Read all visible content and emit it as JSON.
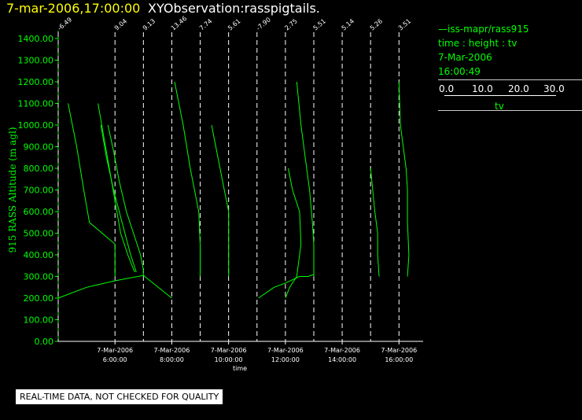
{
  "header": {
    "timestamp": "7-mar-2006,17:00:00",
    "title": "XYObservation:rasspigtails."
  },
  "legend": {
    "series": "iss-mapr/rass915",
    "variables": "time : height : tv",
    "date": "7-Mar-2006",
    "time": "16:00:49",
    "scale_ticks": [
      "0.0",
      "10.0",
      "20.0",
      "30.0"
    ],
    "scale_unit": "tv"
  },
  "note": "REAL-TIME DATA, NOT CHECKED FOR QUALITY",
  "colors": {
    "series": "#00ff00",
    "timestamp": "#ffff00",
    "background": "#000000",
    "gridline": "#ffffff"
  },
  "chart_data": {
    "type": "line",
    "title": "XYObservation:rasspigtails.",
    "ylabel": "915 RASS Altitude (m agl)",
    "xlabel": "time",
    "ylim": [
      0,
      1400
    ],
    "yticks": [
      0,
      100,
      200,
      300,
      400,
      500,
      600,
      700,
      800,
      900,
      1000,
      1100,
      1200,
      1300,
      1400
    ],
    "ytick_labels": [
      "0.00",
      "100.00",
      "200.00",
      "300.00",
      "400.00",
      "500.00",
      "600.00",
      "700.00",
      "800.00",
      "900.00",
      "1000.00",
      "1100.00",
      "1200.00",
      "1300.00",
      "1400.00"
    ],
    "x_hours_range": [
      4.0,
      16.85
    ],
    "x_ticks": [
      {
        "hour": 6,
        "date": "7-Mar-2006",
        "time": "6:00:00"
      },
      {
        "hour": 8,
        "date": "7-Mar-2006",
        "time": "8:00:00"
      },
      {
        "hour": 10,
        "date": "7-Mar-2006",
        "time": "10:00:00"
      },
      {
        "hour": 12,
        "date": "7-Mar-2006",
        "time": "12:00:00"
      },
      {
        "hour": 14,
        "date": "7-Mar-2006",
        "time": "14:00:00"
      },
      {
        "hour": 16,
        "date": "7-Mar-2006",
        "time": "16:00:00"
      }
    ],
    "profiles": [
      {
        "hour": 4.0,
        "label": "-6.49"
      },
      {
        "hour": 6.0,
        "label": "9.04"
      },
      {
        "hour": 7.0,
        "label": "9.13"
      },
      {
        "hour": 8.0,
        "label": "13.46"
      },
      {
        "hour": 9.0,
        "label": "7.74"
      },
      {
        "hour": 10.0,
        "label": "5.61"
      },
      {
        "hour": 11.0,
        "label": "-7.90"
      },
      {
        "hour": 12.0,
        "label": "2.75"
      },
      {
        "hour": 13.0,
        "label": "5.51"
      },
      {
        "hour": 14.0,
        "label": "5.14"
      },
      {
        "hour": 15.0,
        "label": "5.26"
      },
      {
        "hour": 16.0,
        "label": "3.51"
      }
    ],
    "series": [
      {
        "name": "iss-mapr/rass915",
        "points": [
          [
            4.35,
            1100
          ],
          [
            4.65,
            900
          ],
          [
            4.9,
            700
          ],
          [
            5.1,
            550
          ],
          [
            6.0,
            450
          ],
          [
            6.0,
            300
          ]
        ]
      },
      {
        "name": "iss-mapr/rass915",
        "points": [
          [
            5.4,
            1100
          ],
          [
            5.6,
            950
          ],
          [
            5.8,
            800
          ],
          [
            6.0,
            650
          ],
          [
            6.2,
            500
          ],
          [
            6.45,
            400
          ],
          [
            6.6,
            350
          ],
          [
            6.7,
            320
          ]
        ]
      },
      {
        "name": "iss-mapr/rass915",
        "points": [
          [
            5.5,
            1000
          ],
          [
            5.7,
            850
          ],
          [
            5.95,
            700
          ],
          [
            6.25,
            550
          ],
          [
            6.55,
            400
          ],
          [
            6.75,
            320
          ]
        ]
      },
      {
        "name": "iss-mapr/rass915",
        "points": [
          [
            5.75,
            1000
          ],
          [
            5.95,
            880
          ],
          [
            6.15,
            740
          ],
          [
            6.4,
            600
          ],
          [
            6.65,
            500
          ],
          [
            6.9,
            400
          ],
          [
            7.0,
            330
          ],
          [
            7.0,
            300
          ]
        ]
      },
      {
        "name": "iss-mapr/rass915",
        "points": [
          [
            4.0,
            200
          ],
          [
            5.0,
            250
          ],
          [
            6.0,
            280
          ],
          [
            7.0,
            305
          ],
          [
            8.0,
            200
          ]
        ]
      },
      {
        "name": "iss-mapr/rass915",
        "points": [
          [
            8.1,
            1200
          ],
          [
            8.4,
            1000
          ],
          [
            8.65,
            800
          ],
          [
            8.95,
            600
          ],
          [
            9.0,
            450
          ],
          [
            9.0,
            300
          ]
        ]
      },
      {
        "name": "iss-mapr/rass915",
        "points": [
          [
            9.4,
            1000
          ],
          [
            9.55,
            900
          ],
          [
            9.7,
            800
          ],
          [
            9.85,
            700
          ],
          [
            10.0,
            600
          ],
          [
            10.0,
            450
          ],
          [
            10.0,
            300
          ]
        ]
      },
      {
        "name": "iss-mapr/rass915",
        "points": [
          [
            11.05,
            200
          ],
          [
            11.6,
            250
          ],
          [
            12.0,
            270
          ],
          [
            12.5,
            300
          ],
          [
            12.8,
            300
          ],
          [
            13.0,
            310
          ]
        ]
      },
      {
        "name": "iss-mapr/rass915",
        "points": [
          [
            12.0,
            200
          ],
          [
            12.15,
            250
          ],
          [
            12.4,
            300
          ],
          [
            12.55,
            450
          ],
          [
            12.5,
            600
          ],
          [
            12.25,
            700
          ],
          [
            12.1,
            800
          ]
        ]
      },
      {
        "name": "iss-mapr/rass915",
        "points": [
          [
            12.4,
            1200
          ],
          [
            12.55,
            1000
          ],
          [
            12.7,
            850
          ],
          [
            12.85,
            700
          ],
          [
            12.95,
            550
          ],
          [
            13.0,
            450
          ],
          [
            13.0,
            300
          ]
        ]
      },
      {
        "name": "iss-mapr/rass915",
        "points": [
          [
            15.0,
            800
          ],
          [
            15.15,
            600
          ],
          [
            15.25,
            500
          ],
          [
            15.25,
            400
          ],
          [
            15.3,
            300
          ]
        ]
      },
      {
        "name": "iss-mapr/rass915",
        "points": [
          [
            16.0,
            1200
          ],
          [
            16.05,
            1000
          ],
          [
            16.15,
            900
          ],
          [
            16.25,
            800
          ],
          [
            16.3,
            700
          ],
          [
            16.3,
            550
          ],
          [
            16.35,
            400
          ],
          [
            16.3,
            300
          ]
        ]
      }
    ]
  }
}
